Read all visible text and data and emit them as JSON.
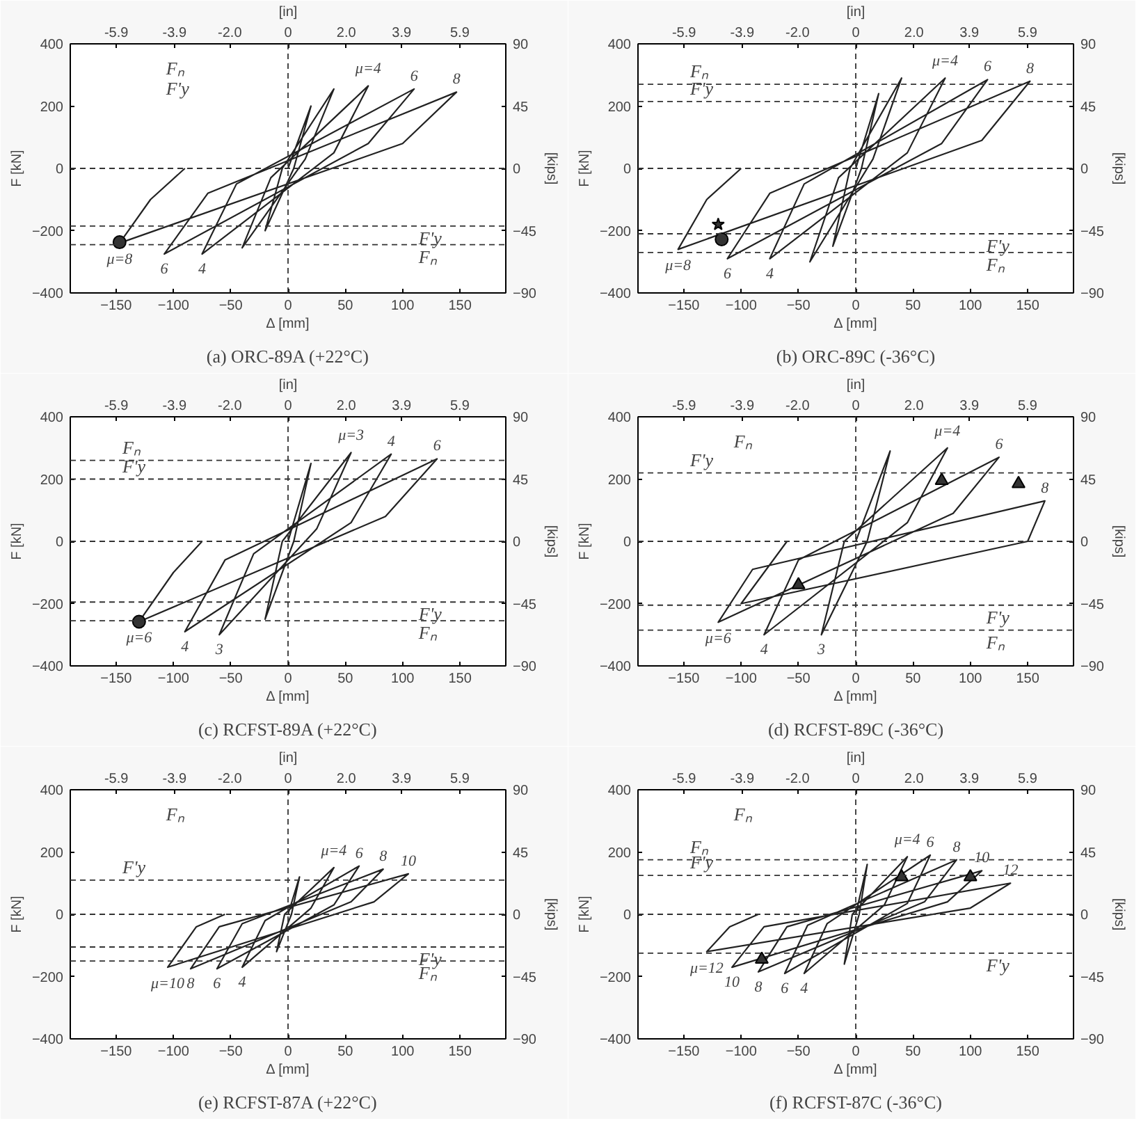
{
  "chart_data": [
    {
      "type": "line",
      "title": "(a) ORC-89A (+22°C)",
      "xlabel": "Δ [mm]",
      "ylabel": "F [kN]",
      "x2label": "[in]",
      "y2label": "[kips]",
      "xlim": [
        -190,
        190
      ],
      "ylim": [
        -400,
        400
      ],
      "x2lim": [
        -7.48,
        7.48
      ],
      "y2lim": [
        -90,
        90
      ],
      "xticks": [
        -150,
        -100,
        -50,
        0,
        50,
        100,
        150
      ],
      "yticks": [
        -400,
        -200,
        0,
        200,
        400
      ],
      "x2ticks": [
        {
          "value": -5.9,
          "label": "-5.9"
        },
        {
          "value": -3.9,
          "label": "-3.9"
        },
        {
          "value": -2.0,
          "label": "-2.0"
        },
        {
          "value": 0,
          "label": "0"
        },
        {
          "value": 2.0,
          "label": "2.0"
        },
        {
          "value": 3.9,
          "label": "3.9"
        },
        {
          "value": 5.9,
          "label": "5.9"
        }
      ],
      "y2ticks": [
        -90,
        -45,
        0,
        45,
        90
      ],
      "grid": false,
      "series": [
        {
          "color": "#222222",
          "marker": "none",
          "x": [
            0,
            20,
            5,
            -20,
            -5,
            40,
            15,
            -40,
            -15,
            70,
            40,
            -75,
            -45,
            110,
            70,
            -108,
            -70,
            147,
            100,
            -147,
            -120,
            -90
          ],
          "values": [
            0,
            200,
            0,
            -200,
            0,
            255,
            30,
            -255,
            -30,
            265,
            50,
            -275,
            -50,
            255,
            80,
            -275,
            -80,
            245,
            80,
            -240,
            -100,
            0
          ]
        },
        {
          "type": "scatter",
          "color": "#333333",
          "marker": "circle",
          "x": [
            -147
          ],
          "values": [
            -237
          ]
        }
      ],
      "ref_lines": [
        {
          "axis": "x",
          "value": 0,
          "line_style": "dashed"
        },
        {
          "axis": "y",
          "value": 0,
          "line_style": "dashed"
        },
        {
          "axis": "y",
          "value": -185,
          "label": "F'y",
          "line_style": "dashed"
        },
        {
          "axis": "y",
          "value": -245,
          "label": "Fₙ",
          "line_style": "dashed"
        }
      ],
      "annotations": [
        "Fₙ",
        "F'y",
        {
          "text": "μ=4",
          "x": 70,
          "y": 265
        },
        {
          "text": "6",
          "x": 110,
          "y": 255
        },
        {
          "text": "8",
          "x": 147,
          "y": 245
        },
        {
          "text": "μ=8",
          "x": -147,
          "y": -240
        },
        {
          "text": "6",
          "x": -108,
          "y": -275
        },
        {
          "text": "4",
          "x": -75,
          "y": -275
        }
      ]
    },
    {
      "type": "line",
      "title": "(b) ORC-89C (-36°C)",
      "xlabel": "Δ [mm]",
      "ylabel": "F [kN]",
      "x2label": "[in]",
      "y2label": "[kips]",
      "xlim": [
        -190,
        190
      ],
      "ylim": [
        -400,
        400
      ],
      "x2lim": [
        -7.48,
        7.48
      ],
      "y2lim": [
        -90,
        90
      ],
      "xticks": [
        -150,
        -100,
        -50,
        0,
        50,
        100,
        150
      ],
      "yticks": [
        -400,
        -200,
        0,
        200,
        400
      ],
      "x2ticks": [
        {
          "value": -5.9,
          "label": "-5.9"
        },
        {
          "value": -3.9,
          "label": "-3.9"
        },
        {
          "value": -2.0,
          "label": "-2.0"
        },
        {
          "value": 0,
          "label": "0"
        },
        {
          "value": 2.0,
          "label": "2.0"
        },
        {
          "value": 3.9,
          "label": "3.9"
        },
        {
          "value": 5.9,
          "label": "5.9"
        }
      ],
      "y2ticks": [
        -90,
        -45,
        0,
        45,
        90
      ],
      "grid": false,
      "series": [
        {
          "color": "#222222",
          "marker": "none",
          "x": [
            0,
            20,
            5,
            -20,
            -5,
            40,
            15,
            -40,
            -15,
            78,
            45,
            -75,
            -45,
            115,
            75,
            -112,
            -75,
            152,
            110,
            -155,
            -130,
            -100
          ],
          "values": [
            0,
            240,
            0,
            -250,
            0,
            290,
            30,
            -300,
            -30,
            290,
            50,
            -290,
            -50,
            285,
            80,
            -290,
            -80,
            280,
            90,
            -260,
            -100,
            0
          ]
        },
        {
          "type": "scatter",
          "color": "#333333",
          "marker": "circle",
          "x": [
            -117
          ],
          "values": [
            -228
          ]
        },
        {
          "type": "scatter",
          "color": "#333333",
          "marker": "star",
          "x": [
            -120
          ],
          "values": [
            -180
          ]
        }
      ],
      "ref_lines": [
        {
          "axis": "x",
          "value": 0,
          "line_style": "dashed"
        },
        {
          "axis": "y",
          "value": 0,
          "line_style": "dashed"
        },
        {
          "axis": "y",
          "value": 270,
          "label": "Fₙ",
          "line_style": "dashed"
        },
        {
          "axis": "y",
          "value": 215,
          "label": "F'y",
          "line_style": "dashed"
        },
        {
          "axis": "y",
          "value": -210,
          "label": "F'y",
          "line_style": "dashed"
        },
        {
          "axis": "y",
          "value": -270,
          "label": "Fₙ",
          "line_style": "dashed"
        }
      ],
      "annotations": [
        {
          "text": "μ=4",
          "x": 78,
          "y": 290
        },
        {
          "text": "6",
          "x": 115,
          "y": 285
        },
        {
          "text": "8",
          "x": 152,
          "y": 280
        },
        {
          "text": "μ=8",
          "x": -155,
          "y": -260
        },
        {
          "text": "6",
          "x": -112,
          "y": -290
        },
        {
          "text": "4",
          "x": -75,
          "y": -290
        }
      ]
    },
    {
      "type": "line",
      "title": "(c) RCFST-89A (+22°C)",
      "xlabel": "Δ [mm]",
      "ylabel": "F [kN]",
      "x2label": "[in]",
      "y2label": "[kips]",
      "xlim": [
        -190,
        190
      ],
      "ylim": [
        -400,
        400
      ],
      "x2lim": [
        -7.48,
        7.48
      ],
      "y2lim": [
        -90,
        90
      ],
      "xticks": [
        -150,
        -100,
        -50,
        0,
        50,
        100,
        150
      ],
      "yticks": [
        -400,
        -200,
        0,
        200,
        400
      ],
      "x2ticks": [
        {
          "value": -5.9,
          "label": "-5.9"
        },
        {
          "value": -3.9,
          "label": "-3.9"
        },
        {
          "value": -2.0,
          "label": "-2.0"
        },
        {
          "value": 0,
          "label": "0"
        },
        {
          "value": 2.0,
          "label": "2.0"
        },
        {
          "value": 3.9,
          "label": "3.9"
        },
        {
          "value": 5.9,
          "label": "5.9"
        }
      ],
      "y2ticks": [
        -90,
        -45,
        0,
        45,
        90
      ],
      "grid": false,
      "series": [
        {
          "color": "#222222",
          "marker": "none",
          "x": [
            0,
            20,
            5,
            -20,
            -5,
            55,
            25,
            -60,
            -30,
            90,
            55,
            -90,
            -55,
            130,
            85,
            -130,
            -100,
            -75
          ],
          "values": [
            0,
            250,
            0,
            -250,
            0,
            285,
            40,
            -300,
            -40,
            280,
            60,
            -290,
            -60,
            265,
            80,
            -258,
            -100,
            0
          ]
        },
        {
          "type": "scatter",
          "color": "#333333",
          "marker": "circle",
          "x": [
            -130
          ],
          "values": [
            -258
          ]
        }
      ],
      "ref_lines": [
        {
          "axis": "x",
          "value": 0,
          "line_style": "dashed"
        },
        {
          "axis": "y",
          "value": 0,
          "line_style": "dashed"
        },
        {
          "axis": "y",
          "value": 260,
          "label": "Fₙ",
          "line_style": "dashed"
        },
        {
          "axis": "y",
          "value": 200,
          "label": "F'y",
          "line_style": "dashed"
        },
        {
          "axis": "y",
          "value": -195,
          "label": "F'y",
          "line_style": "dashed"
        },
        {
          "axis": "y",
          "value": -255,
          "label": "Fₙ",
          "line_style": "dashed"
        }
      ],
      "annotations": [
        {
          "text": "μ=3",
          "x": 55,
          "y": 285
        },
        {
          "text": "4",
          "x": 90,
          "y": 280
        },
        {
          "text": "6",
          "x": 130,
          "y": 265
        },
        {
          "text": "μ=6",
          "x": -130,
          "y": -258
        },
        {
          "text": "4",
          "x": -90,
          "y": -290
        },
        {
          "text": "3",
          "x": -60,
          "y": -300
        }
      ]
    },
    {
      "type": "line",
      "title": "(d) RCFST-89C (-36°C)",
      "xlabel": "Δ [mm]",
      "ylabel": "F [kN]",
      "x2label": "[in]",
      "y2label": "[kips]",
      "xlim": [
        -190,
        190
      ],
      "ylim": [
        -400,
        400
      ],
      "x2lim": [
        -7.48,
        7.48
      ],
      "y2lim": [
        -90,
        90
      ],
      "xticks": [
        -150,
        -100,
        -50,
        0,
        50,
        100,
        150
      ],
      "yticks": [
        -400,
        -200,
        0,
        200,
        400
      ],
      "x2ticks": [
        {
          "value": -5.9,
          "label": "-5.9"
        },
        {
          "value": -3.9,
          "label": "-3.9"
        },
        {
          "value": -2.0,
          "label": "-2.0"
        },
        {
          "value": 0,
          "label": "0"
        },
        {
          "value": 2.0,
          "label": "2.0"
        },
        {
          "value": 3.9,
          "label": "3.9"
        },
        {
          "value": 5.9,
          "label": "5.9"
        }
      ],
      "y2ticks": [
        -90,
        -45,
        0,
        45,
        90
      ],
      "grid": false,
      "series": [
        {
          "color": "#222222",
          "marker": "none",
          "x": [
            0,
            30,
            10,
            -30,
            -10,
            80,
            45,
            -80,
            -50,
            125,
            85,
            -120,
            -90,
            165,
            150,
            -100,
            -60
          ],
          "values": [
            0,
            290,
            0,
            -300,
            0,
            300,
            60,
            -300,
            -60,
            270,
            90,
            -260,
            -90,
            130,
            0,
            -200,
            0
          ]
        },
        {
          "type": "scatter",
          "color": "#333333",
          "marker": "triangle",
          "x": [
            75,
            142,
            -50
          ],
          "values": [
            195,
            185,
            -140
          ]
        }
      ],
      "ref_lines": [
        {
          "axis": "x",
          "value": 0,
          "line_style": "dashed"
        },
        {
          "axis": "y",
          "value": 0,
          "line_style": "dashed"
        },
        {
          "axis": "y",
          "value": 220,
          "label": "F'y",
          "line_style": "dashed"
        },
        {
          "axis": "y",
          "value": -205,
          "label": "F'y",
          "line_style": "dashed"
        },
        {
          "axis": "y",
          "value": -285,
          "label": "Fₙ",
          "line_style": "dashed"
        }
      ],
      "annotations": [
        "Fₙ",
        {
          "text": "μ=4",
          "x": 80,
          "y": 300
        },
        {
          "text": "6",
          "x": 125,
          "y": 270
        },
        {
          "text": "8",
          "x": 165,
          "y": 130
        },
        {
          "text": "μ=6",
          "x": -120,
          "y": -260
        },
        {
          "text": "4",
          "x": -80,
          "y": -300
        },
        {
          "text": "3",
          "x": -30,
          "y": -300
        }
      ]
    },
    {
      "type": "line",
      "title": "(e) RCFST-87A (+22°C)",
      "xlabel": "Δ [mm]",
      "ylabel": "F [kN]",
      "x2label": "[in]",
      "y2label": "[kips]",
      "xlim": [
        -190,
        190
      ],
      "ylim": [
        -400,
        400
      ],
      "x2lim": [
        -7.48,
        7.48
      ],
      "y2lim": [
        -90,
        90
      ],
      "xticks": [
        -150,
        -100,
        -50,
        0,
        50,
        100,
        150
      ],
      "yticks": [
        -400,
        -200,
        0,
        200,
        400
      ],
      "x2ticks": [
        {
          "value": -5.9,
          "label": "-5.9"
        },
        {
          "value": -3.9,
          "label": "-3.9"
        },
        {
          "value": -2.0,
          "label": "-2.0"
        },
        {
          "value": 0,
          "label": "0"
        },
        {
          "value": 2.0,
          "label": "2.0"
        },
        {
          "value": 3.9,
          "label": "3.9"
        },
        {
          "value": 5.9,
          "label": "5.9"
        }
      ],
      "y2ticks": [
        -90,
        -45,
        0,
        45,
        90
      ],
      "grid": false,
      "series": [
        {
          "color": "#222222",
          "marker": "none",
          "x": [
            0,
            10,
            3,
            -10,
            -3,
            40,
            20,
            -40,
            -20,
            62,
            40,
            -62,
            -40,
            83,
            55,
            -85,
            -60,
            105,
            75,
            -105,
            -80,
            -55
          ],
          "values": [
            0,
            120,
            0,
            -120,
            0,
            150,
            20,
            -170,
            -20,
            155,
            30,
            -175,
            -30,
            145,
            40,
            -175,
            -40,
            130,
            40,
            -170,
            -40,
            0
          ]
        }
      ],
      "ref_lines": [
        {
          "axis": "x",
          "value": 0,
          "line_style": "dashed"
        },
        {
          "axis": "y",
          "value": 0,
          "line_style": "dashed"
        },
        {
          "axis": "y",
          "value": 110,
          "label": "F'y",
          "line_style": "dashed"
        },
        {
          "axis": "y",
          "value": -105,
          "label": "F'y",
          "line_style": "dashed"
        },
        {
          "axis": "y",
          "value": -150,
          "label": "Fₙ",
          "line_style": "dashed"
        }
      ],
      "annotations": [
        "Fₙ",
        {
          "text": "μ=4",
          "x": 40,
          "y": 150
        },
        {
          "text": "6",
          "x": 62,
          "y": 155
        },
        {
          "text": "8",
          "x": 83,
          "y": 145
        },
        {
          "text": "10",
          "x": 105,
          "y": 130
        },
        {
          "text": "μ=10",
          "x": -105,
          "y": -170
        },
        {
          "text": "8",
          "x": -85,
          "y": -175
        },
        {
          "text": "6",
          "x": -62,
          "y": -175
        },
        {
          "text": "4",
          "x": -40,
          "y": -170
        }
      ]
    },
    {
      "type": "line",
      "title": "(f) RCFST-87C (-36°C)",
      "xlabel": "Δ [mm]",
      "ylabel": "F [kN]",
      "x2label": "[in]",
      "y2label": "[kips]",
      "xlim": [
        -190,
        190
      ],
      "ylim": [
        -400,
        400
      ],
      "x2lim": [
        -7.48,
        7.48
      ],
      "y2lim": [
        -90,
        90
      ],
      "xticks": [
        -150,
        -100,
        -50,
        0,
        50,
        100,
        150
      ],
      "yticks": [
        -400,
        -200,
        0,
        200,
        400
      ],
      "x2ticks": [
        {
          "value": -5.9,
          "label": "-5.9"
        },
        {
          "value": -3.9,
          "label": "-3.9"
        },
        {
          "value": -2.0,
          "label": "-2.0"
        },
        {
          "value": 0,
          "label": "0"
        },
        {
          "value": 2.0,
          "label": "2.0"
        },
        {
          "value": 3.9,
          "label": "3.9"
        },
        {
          "value": 5.9,
          "label": "5.9"
        }
      ],
      "y2ticks": [
        -90,
        -45,
        0,
        45,
        90
      ],
      "grid": false,
      "series": [
        {
          "color": "#222222",
          "marker": "none",
          "x": [
            0,
            10,
            3,
            -10,
            -3,
            45,
            25,
            -45,
            -25,
            65,
            45,
            -62,
            -42,
            88,
            60,
            -85,
            -60,
            110,
            80,
            -108,
            -80,
            135,
            100,
            -130,
            -110,
            -85
          ],
          "values": [
            0,
            160,
            0,
            -160,
            0,
            185,
            30,
            -190,
            -30,
            190,
            35,
            -190,
            -35,
            175,
            40,
            -185,
            -40,
            140,
            40,
            -170,
            -40,
            100,
            20,
            -120,
            -40,
            0
          ]
        },
        {
          "type": "scatter",
          "color": "#333333",
          "marker": "triangle",
          "x": [
            40,
            100,
            -82
          ],
          "values": [
            120,
            120,
            -145
          ]
        }
      ],
      "ref_lines": [
        {
          "axis": "x",
          "value": 0,
          "line_style": "dashed"
        },
        {
          "axis": "y",
          "value": 0,
          "line_style": "dashed"
        },
        {
          "axis": "y",
          "value": 175,
          "label": "Fₙ",
          "line_style": "dashed"
        },
        {
          "axis": "y",
          "value": 125,
          "label": "F'y",
          "line_style": "dashed"
        },
        {
          "axis": "y",
          "value": -125,
          "label": "F'y",
          "line_style": "dashed"
        }
      ],
      "annotations": [
        "Fₙ",
        {
          "text": "μ=4",
          "x": 45,
          "y": 185
        },
        {
          "text": "6",
          "x": 65,
          "y": 190
        },
        {
          "text": "8",
          "x": 88,
          "y": 175
        },
        {
          "text": "10",
          "x": 110,
          "y": 140
        },
        {
          "text": "12",
          "x": 135,
          "y": 100
        },
        {
          "text": "μ=12",
          "x": -130,
          "y": -120
        },
        {
          "text": "10",
          "x": -108,
          "y": -170
        },
        {
          "text": "8",
          "x": -85,
          "y": -185
        },
        {
          "text": "6",
          "x": -62,
          "y": -190
        },
        {
          "text": "4",
          "x": -45,
          "y": -190
        }
      ]
    }
  ]
}
